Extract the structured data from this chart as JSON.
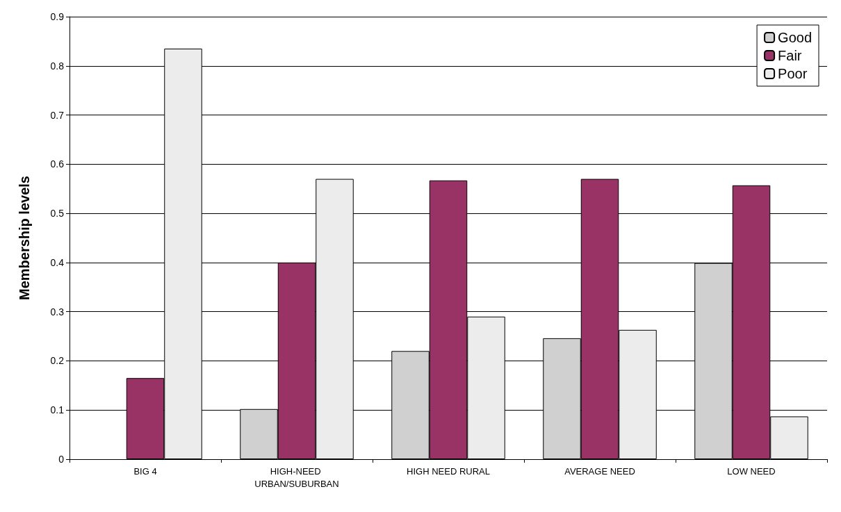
{
  "chart_data": {
    "type": "bar",
    "ylabel": "Membership levels",
    "categories": [
      "BIG 4",
      "HIGH-NEED URBAN/SUBURBAN",
      "HIGH NEED RURAL",
      "AVERAGE NEED",
      "LOW NEED"
    ],
    "series": [
      {
        "name": "Good",
        "color": "#d0d0d0",
        "values": [
          null,
          0.102,
          0.22,
          0.246,
          0.399
        ]
      },
      {
        "name": "Fair",
        "color": "#993366",
        "values": [
          0.165,
          0.4,
          0.567,
          0.57,
          0.557
        ]
      },
      {
        "name": "Poor",
        "color": "#ececec",
        "values": [
          0.835,
          0.57,
          0.29,
          0.263,
          0.087
        ]
      }
    ],
    "ylim": [
      0,
      0.9
    ],
    "yticks": [
      0,
      0.1,
      0.2,
      0.3,
      0.4,
      0.5,
      0.6,
      0.7,
      0.8,
      0.9
    ],
    "grid": "y",
    "legend": "top right"
  }
}
